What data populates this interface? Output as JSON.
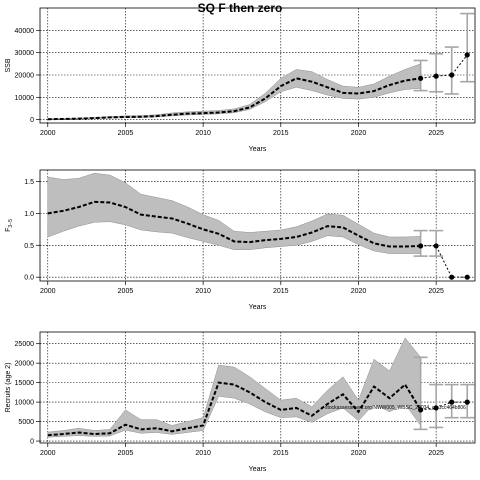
{
  "title": "SQ F then zero",
  "annotation": "stockassessment.org/NWW005_WBSC_29034_git 1cc464b806",
  "colors": {
    "band": "#bebebe",
    "line": "#000000",
    "forecast": "#a6a6a6",
    "grid": "#000000"
  },
  "chart_data": [
    {
      "type": "line",
      "ylabel": "SSB",
      "xlabel": "Years",
      "xlim": [
        1999.5,
        2027.5
      ],
      "xticks": [
        2000,
        2005,
        2010,
        2015,
        2020,
        2025
      ],
      "ylim": [
        -1500,
        50000
      ],
      "yticks": [
        0,
        10000,
        20000,
        30000,
        40000
      ],
      "grid": true,
      "x": [
        2000,
        2001,
        2002,
        2003,
        2004,
        2005,
        2006,
        2007,
        2008,
        2009,
        2010,
        2011,
        2012,
        2013,
        2014,
        2015,
        2016,
        2017,
        2018,
        2019,
        2020,
        2021,
        2022,
        2023,
        2024
      ],
      "estimate": [
        200,
        300,
        450,
        700,
        1000,
        1200,
        1300,
        1600,
        2200,
        2700,
        2900,
        3200,
        3800,
        5500,
        9500,
        15000,
        18500,
        17000,
        14500,
        12000,
        11700,
        12800,
        15500,
        17500,
        18500
      ],
      "lower": [
        100,
        200,
        300,
        500,
        700,
        850,
        950,
        1200,
        1700,
        2100,
        2300,
        2600,
        3100,
        4600,
        8000,
        12500,
        14500,
        13000,
        11000,
        9500,
        9200,
        10000,
        12000,
        13500,
        14000
      ],
      "upper": [
        350,
        500,
        700,
        1000,
        1400,
        1700,
        1800,
        2200,
        3000,
        3500,
        3800,
        4100,
        4800,
        6800,
        11800,
        18500,
        22500,
        21500,
        18000,
        15000,
        14500,
        16000,
        19500,
        22500,
        25000
      ],
      "forecast": [
        {
          "x": 2024,
          "median": 18500,
          "lower": 13000,
          "upper": 26500
        },
        {
          "x": 2025,
          "median": 19500,
          "lower": 12500,
          "upper": 29500
        },
        {
          "x": 2026,
          "median": 20000,
          "lower": 11500,
          "upper": 32500
        },
        {
          "x": 2027,
          "median": 29000,
          "lower": 17000,
          "upper": 47500
        }
      ]
    },
    {
      "type": "line",
      "ylabel": "F",
      "ylabel_sub": "3−5",
      "xlabel": "Years",
      "xlim": [
        1999.5,
        2027.5
      ],
      "xticks": [
        2000,
        2005,
        2010,
        2015,
        2020,
        2025
      ],
      "ylim": [
        -0.06,
        1.68
      ],
      "yticks": [
        0.0,
        0.5,
        1.0,
        1.5
      ],
      "grid": true,
      "x": [
        2000,
        2001,
        2002,
        2003,
        2004,
        2005,
        2006,
        2007,
        2008,
        2009,
        2010,
        2011,
        2012,
        2013,
        2014,
        2015,
        2016,
        2017,
        2018,
        2019,
        2020,
        2021,
        2022,
        2023,
        2024
      ],
      "estimate": [
        1.0,
        1.04,
        1.1,
        1.18,
        1.17,
        1.1,
        0.98,
        0.95,
        0.92,
        0.84,
        0.75,
        0.68,
        0.56,
        0.55,
        0.58,
        0.6,
        0.63,
        0.7,
        0.8,
        0.78,
        0.65,
        0.53,
        0.48,
        0.48,
        0.49
      ],
      "lower": [
        0.63,
        0.72,
        0.8,
        0.86,
        0.87,
        0.82,
        0.74,
        0.71,
        0.69,
        0.62,
        0.56,
        0.5,
        0.43,
        0.43,
        0.46,
        0.48,
        0.5,
        0.56,
        0.65,
        0.63,
        0.51,
        0.41,
        0.37,
        0.37,
        0.37
      ],
      "upper": [
        1.57,
        1.53,
        1.55,
        1.63,
        1.6,
        1.48,
        1.3,
        1.25,
        1.2,
        1.1,
        0.98,
        0.89,
        0.72,
        0.7,
        0.72,
        0.74,
        0.79,
        0.88,
        0.99,
        0.97,
        0.83,
        0.69,
        0.63,
        0.63,
        0.64
      ],
      "forecast": [
        {
          "x": 2024,
          "median": 0.49,
          "lower": 0.33,
          "upper": 0.73
        },
        {
          "x": 2025,
          "median": 0.49,
          "lower": 0.33,
          "upper": 0.73
        },
        {
          "x": 2026,
          "median": 0.0,
          "lower": 0.0,
          "upper": 0.0
        },
        {
          "x": 2027,
          "median": 0.0,
          "lower": 0.0,
          "upper": 0.0
        }
      ]
    },
    {
      "type": "line",
      "ylabel": "Recruits (age 2)",
      "xlabel": "Years",
      "xlim": [
        1999.5,
        2027.5
      ],
      "xticks": [
        2000,
        2005,
        2010,
        2015,
        2020,
        2025
      ],
      "ylim": [
        -500,
        28000
      ],
      "yticks": [
        0,
        5000,
        10000,
        15000,
        20000,
        25000
      ],
      "grid": true,
      "x": [
        2000,
        2001,
        2002,
        2003,
        2004,
        2005,
        2006,
        2007,
        2008,
        2009,
        2010,
        2011,
        2012,
        2013,
        2014,
        2015,
        2016,
        2017,
        2018,
        2019,
        2020,
        2021,
        2022,
        2023,
        2024
      ],
      "estimate": [
        1500,
        1800,
        2200,
        1800,
        2000,
        4200,
        3000,
        3300,
        2500,
        3300,
        4000,
        15000,
        14500,
        12500,
        10000,
        8000,
        8500,
        6500,
        9500,
        12000,
        7500,
        14000,
        11000,
        14500,
        8000
      ],
      "lower": [
        1000,
        1200,
        1400,
        1200,
        1300,
        2800,
        2000,
        2200,
        1700,
        2200,
        2700,
        11500,
        11000,
        9500,
        7500,
        6000,
        6200,
        4800,
        7000,
        8500,
        5200,
        9500,
        7500,
        9500,
        4000
      ],
      "upper": [
        2300,
        2700,
        3300,
        2700,
        3000,
        8000,
        5500,
        5500,
        4000,
        5000,
        6000,
        19500,
        19000,
        16500,
        13500,
        10500,
        11000,
        8800,
        13000,
        16500,
        10500,
        21000,
        18000,
        26500,
        21500
      ],
      "forecast": [
        {
          "x": 2024,
          "median": 8000,
          "lower": 3000,
          "upper": 21500
        },
        {
          "x": 2025,
          "median": 8500,
          "lower": 3500,
          "upper": 14500
        },
        {
          "x": 2026,
          "median": 10000,
          "lower": 6000,
          "upper": 14500
        },
        {
          "x": 2027,
          "median": 10000,
          "lower": 6000,
          "upper": 14500
        }
      ]
    }
  ]
}
